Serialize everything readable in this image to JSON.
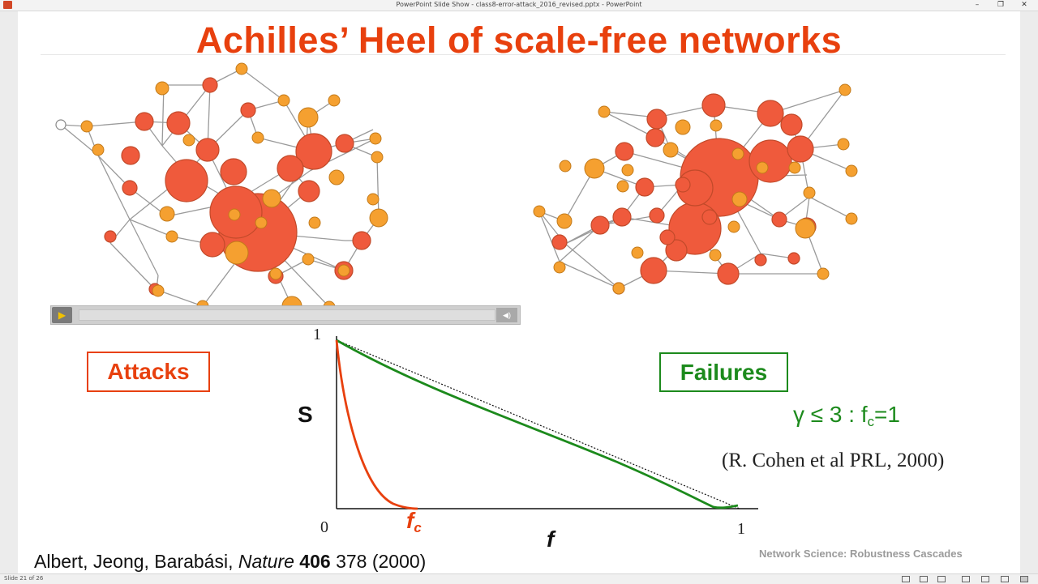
{
  "window": {
    "title": "PowerPoint Slide Show  -  class8-error-attack_2016_revised.pptx - PowerPoint",
    "controls": {
      "minimize": "–",
      "restore": "❐",
      "close": "✕"
    }
  },
  "slide": {
    "title": "Achilles’ Heel of scale-free networks",
    "attacks_label": "Attacks",
    "failures_label": "Failures",
    "gamma_text": "γ ≤ 3 : f",
    "gamma_sub": "c",
    "gamma_tail": "=1",
    "cohen_ref": "(R. Cohen et al PRL, 2000)",
    "axis": {
      "y_top": "1",
      "origin": "0",
      "x_right": "1",
      "y_label": "S",
      "x_label": "f",
      "fc_main": "f",
      "fc_sub": "c"
    },
    "citation": {
      "authors": "Albert, Jeong, Barabási, ",
      "journal": "Nature",
      "volume": " 406",
      "rest": " 378 (2000)"
    },
    "footer_tag": "Network Science: Robustness Cascades"
  },
  "media": {
    "play_icon": "▶",
    "volume_icon": "◀)"
  },
  "status": {
    "slide_counter": "Slide 21 of 26"
  },
  "colors": {
    "accent": "#e8400e",
    "green": "#1c8a1c",
    "node_red": "#ef5a3c",
    "node_orange": "#f5a030"
  }
}
